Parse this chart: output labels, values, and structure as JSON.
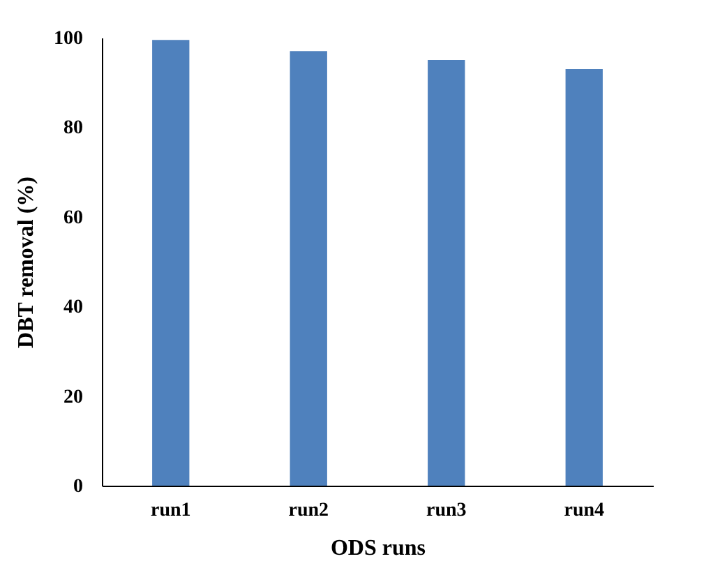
{
  "chart_data": {
    "type": "bar",
    "xlabel": "ODS runs",
    "ylabel": "DBT removal (%)",
    "categories": [
      "run1",
      "run2",
      "run3",
      "run4"
    ],
    "values": [
      99.5,
      97,
      95,
      93
    ],
    "color": "#4f81bd",
    "ylim": [
      0,
      100
    ],
    "yticks": [
      0,
      20,
      40,
      60,
      80,
      100
    ],
    "grid": false
  }
}
